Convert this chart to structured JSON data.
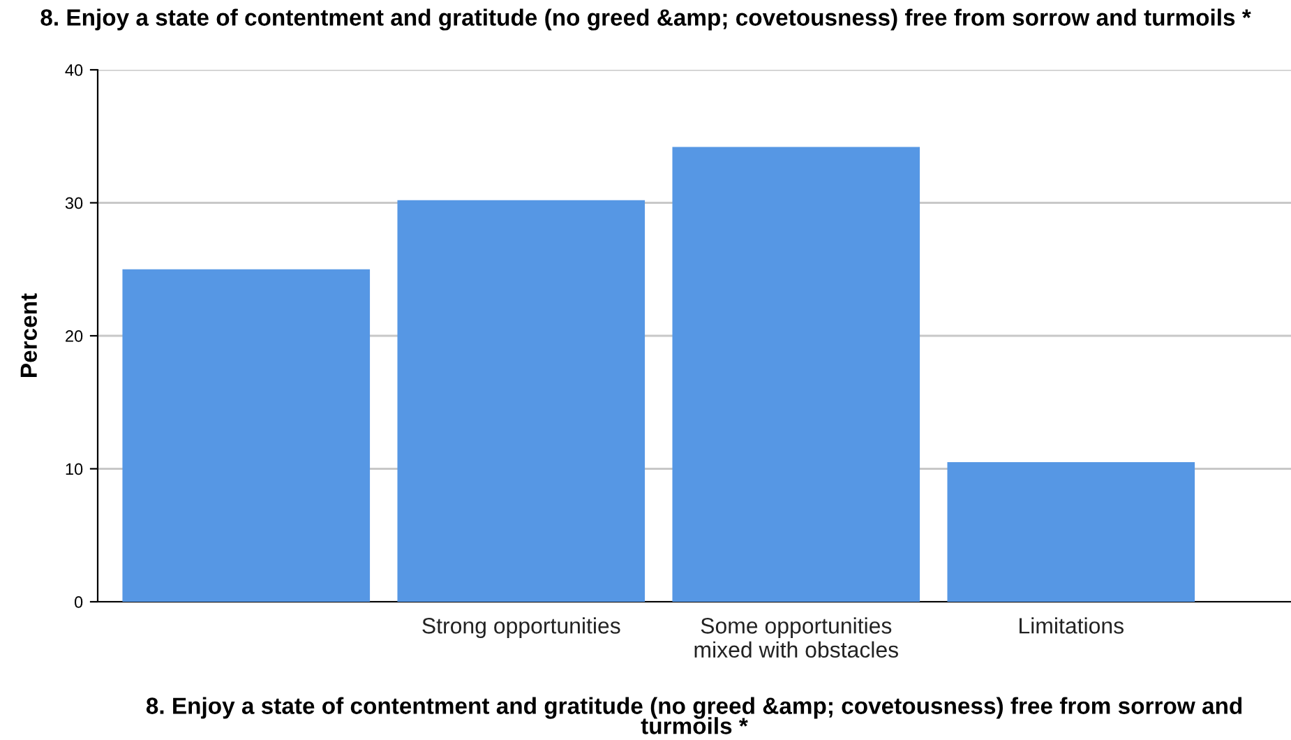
{
  "chart_data": {
    "type": "bar",
    "title": "8. Enjoy a state of contentment and gratitude (no greed &amp; covetousness) free from sorrow and turmoils *",
    "xlabel": "8. Enjoy a state of contentment and gratitude (no greed &amp; covetousness) free from sorrow and turmoils *",
    "ylabel": "Percent",
    "categories": [
      null,
      "Strong opportunities",
      "Some opportunities\nmixed with obstacles",
      "Limitations"
    ],
    "values": [
      25.0,
      30.2,
      34.2,
      10.5
    ],
    "color": "#5697e4",
    "ylim": [
      0,
      40
    ],
    "yticks": [
      0,
      10,
      20,
      30,
      40
    ],
    "grid": "y"
  }
}
